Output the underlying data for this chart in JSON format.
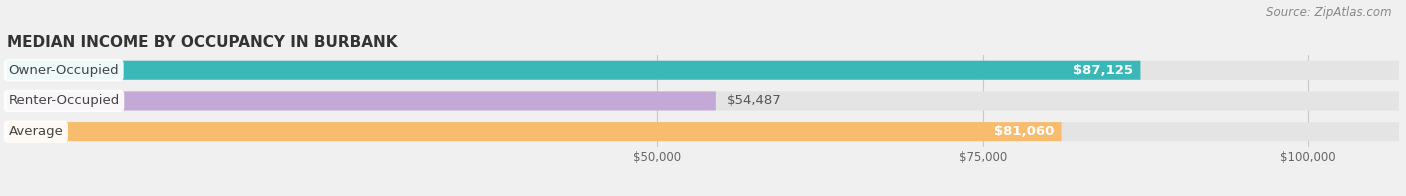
{
  "title": "MEDIAN INCOME BY OCCUPANCY IN BURBANK",
  "source": "Source: ZipAtlas.com",
  "categories": [
    "Owner-Occupied",
    "Renter-Occupied",
    "Average"
  ],
  "values": [
    87125,
    54487,
    81060
  ],
  "bar_colors": [
    "#3ab8b8",
    "#c4a8d6",
    "#f7bc6e"
  ],
  "background_color": "#f0f0f0",
  "bar_bg_color": "#e4e4e4",
  "xlim_max": 107000,
  "xticks": [
    50000,
    75000,
    100000
  ],
  "xtick_labels": [
    "$50,000",
    "$75,000",
    "$100,000"
  ],
  "label_inside_threshold": 70000,
  "title_fontsize": 11,
  "source_fontsize": 8.5,
  "bar_height": 0.62,
  "bar_label_fontsize": 9.5,
  "cat_label_fontsize": 9.5,
  "figsize": [
    14.06,
    1.96
  ],
  "dpi": 100
}
